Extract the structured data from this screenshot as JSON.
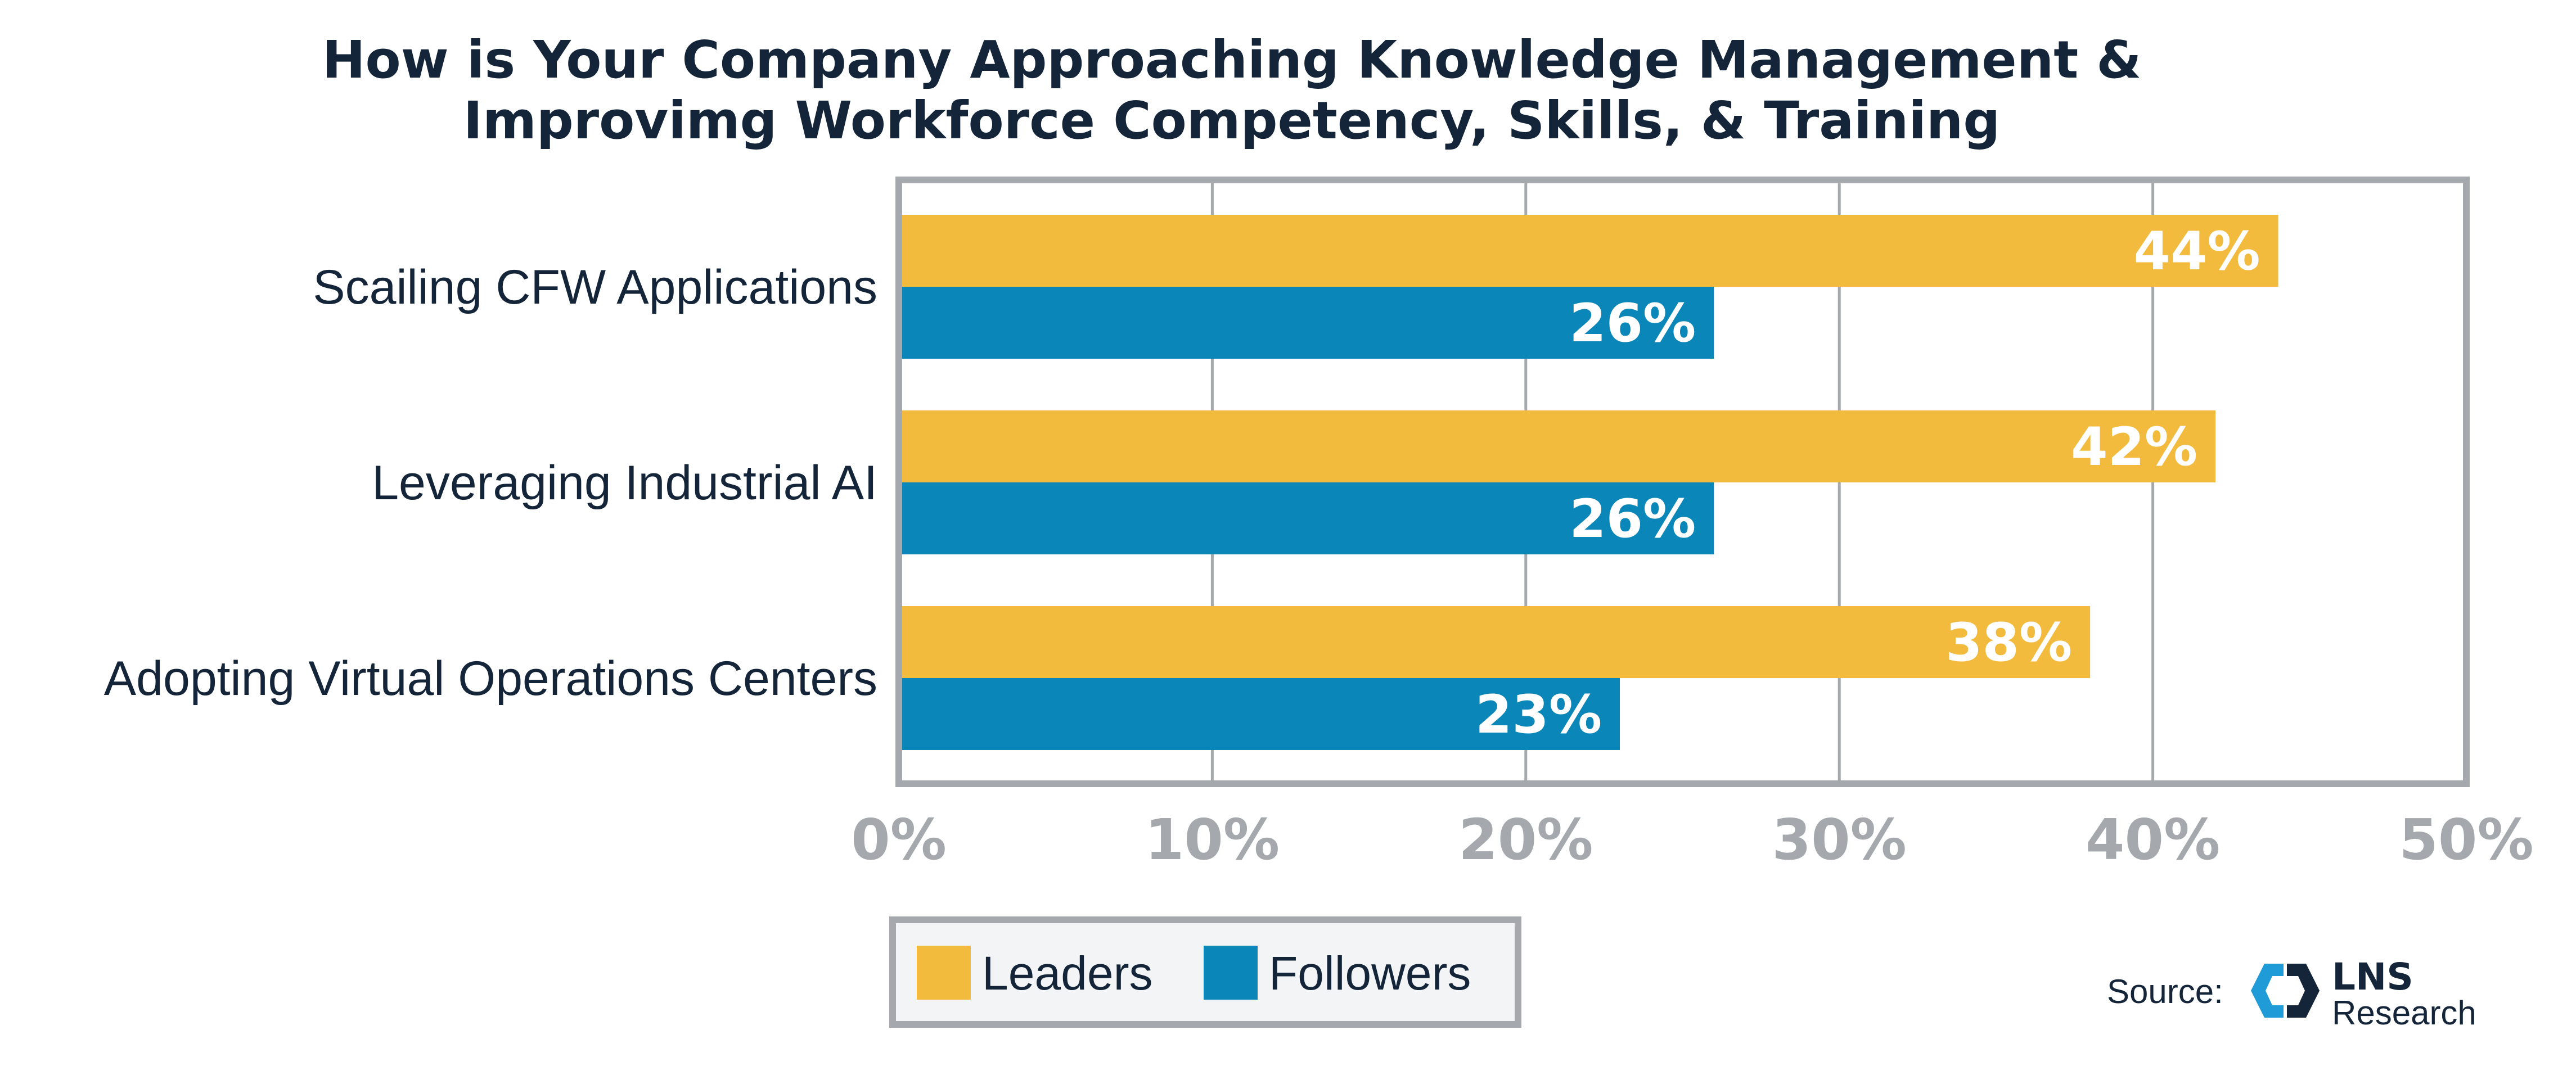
{
  "chart_data": {
    "type": "bar",
    "orientation": "horizontal",
    "title": "How is Your Company Approaching Knowledge Management & Improvimg Workforce Competency, Skills, & Training",
    "title_lines": [
      "How is Your Company Approaching Knowledge Management &",
      "Improvimg Workforce Competency, Skills, & Training"
    ],
    "categories": [
      "Scailing CFW Applications",
      "Leveraging Industrial AI",
      "Adopting Virtual Operations Centers"
    ],
    "series": [
      {
        "name": "Leaders",
        "color": "#f2bb3e",
        "values": [
          44,
          42,
          38
        ],
        "labels": [
          "44%",
          "42%",
          "38%"
        ]
      },
      {
        "name": "Followers",
        "color": "#0a87b8",
        "values": [
          26,
          26,
          23
        ],
        "labels": [
          "26%",
          "26%",
          "23%"
        ]
      }
    ],
    "xlim": [
      0,
      50
    ],
    "xticks": [
      0,
      10,
      20,
      30,
      40,
      50
    ],
    "xtick_labels": [
      "0%",
      "10%",
      "20%",
      "30%",
      "40%",
      "50%"
    ],
    "xlabel": "",
    "ylabel": "",
    "grid": true,
    "legend_position": "bottom-left",
    "frame_color": "#a5a9ad",
    "grid_color": "#a5a9ad"
  },
  "source": {
    "label": "Source:",
    "logo_name": "lns-research-logo",
    "logo_text_main": "LNS",
    "logo_text_sub": "Research",
    "logo_colors": [
      "#1f9bd7",
      "#14253a"
    ]
  }
}
